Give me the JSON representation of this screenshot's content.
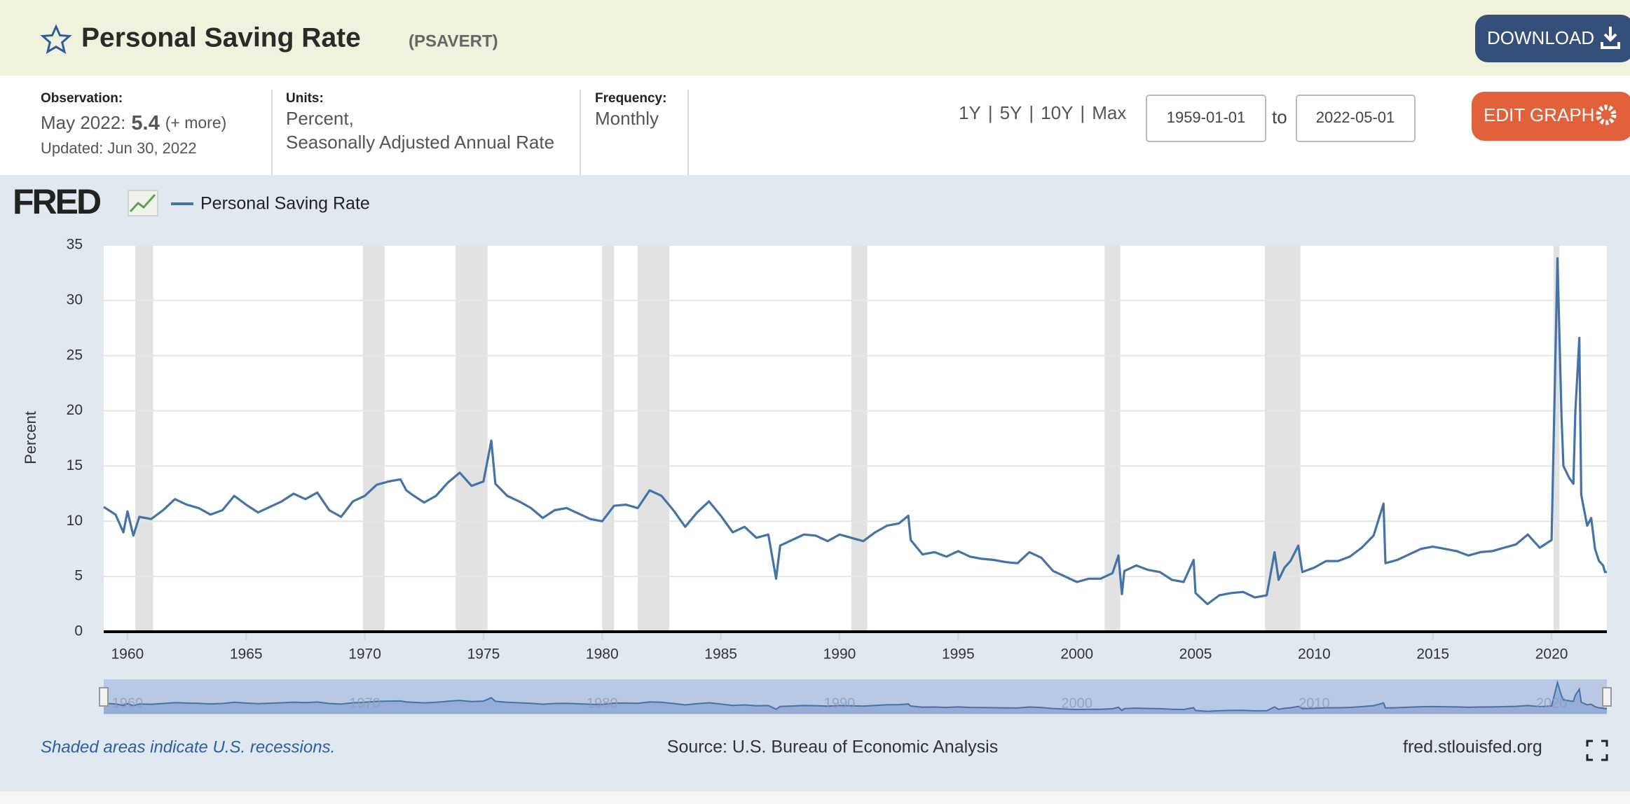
{
  "header": {
    "title": "Personal Saving Rate",
    "series_id": "(PSAVERT)",
    "download": "DOWNLOAD"
  },
  "info": {
    "observation_label": "Observation:",
    "observation_date": "May 2022:",
    "observation_value": "5.4",
    "more": "(+ more)",
    "updated": "Updated: Jun 30, 2022",
    "units_label": "Units:",
    "units_line1": "Percent,",
    "units_line2": "Seasonally Adjusted Annual Rate",
    "frequency_label": "Frequency:",
    "frequency": "Monthly"
  },
  "controls": {
    "ranges": [
      "1Y",
      "5Y",
      "10Y",
      "Max"
    ],
    "separator": "|",
    "start_date": "1959-01-01",
    "to": "to",
    "end_date": "2022-05-01",
    "edit": "EDIT GRAPH"
  },
  "chart_data": {
    "type": "line",
    "logo": "FRED",
    "ylabel": "Percent",
    "x": [
      1959.0,
      1959.5,
      1959.83,
      1960.0,
      1960.25,
      1960.5,
      1961.0,
      1961.5,
      1962.0,
      1962.5,
      1963.0,
      1963.5,
      1964.0,
      1964.5,
      1965.0,
      1965.5,
      1966.0,
      1966.5,
      1967.0,
      1967.5,
      1968.0,
      1968.5,
      1969.0,
      1969.5,
      1970.0,
      1970.5,
      1971.0,
      1971.5,
      1971.75,
      1972.0,
      1972.5,
      1973.0,
      1973.5,
      1974.0,
      1974.5,
      1975.0,
      1975.33,
      1975.5,
      1976.0,
      1976.5,
      1977.0,
      1977.5,
      1978.0,
      1978.5,
      1979.0,
      1979.5,
      1980.0,
      1980.5,
      1981.0,
      1981.5,
      1982.0,
      1982.5,
      1983.0,
      1983.5,
      1984.0,
      1984.5,
      1985.0,
      1985.5,
      1986.0,
      1986.5,
      1987.0,
      1987.33,
      1987.5,
      1988.0,
      1988.5,
      1989.0,
      1989.5,
      1990.0,
      1990.5,
      1991.0,
      1991.5,
      1992.0,
      1992.5,
      1992.9,
      1993.0,
      1993.5,
      1994.0,
      1994.5,
      1995.0,
      1995.5,
      1996.0,
      1996.5,
      1997.0,
      1997.5,
      1998.0,
      1998.5,
      1999.0,
      1999.5,
      2000.0,
      2000.5,
      2001.0,
      2001.5,
      2001.75,
      2001.9,
      2002.0,
      2002.5,
      2003.0,
      2003.5,
      2004.0,
      2004.5,
      2004.92,
      2005.0,
      2005.5,
      2006.0,
      2006.5,
      2007.0,
      2007.5,
      2008.0,
      2008.33,
      2008.5,
      2008.75,
      2009.0,
      2009.33,
      2009.5,
      2010.0,
      2010.5,
      2011.0,
      2011.5,
      2012.0,
      2012.5,
      2012.92,
      2013.0,
      2013.5,
      2014.0,
      2014.5,
      2015.0,
      2015.5,
      2016.0,
      2016.5,
      2017.0,
      2017.5,
      2018.0,
      2018.5,
      2019.0,
      2019.5,
      2020.0,
      2020.25,
      2020.42,
      2020.5,
      2020.75,
      2020.92,
      2021.0,
      2021.17,
      2021.25,
      2021.5,
      2021.67,
      2021.83,
      2022.0,
      2022.17,
      2022.25,
      2022.33
    ],
    "series": [
      {
        "name": "Personal Saving Rate",
        "color": "#4572a7",
        "values": [
          11.3,
          10.6,
          9.0,
          10.9,
          8.7,
          10.4,
          10.2,
          11.0,
          12.0,
          11.5,
          11.2,
          10.6,
          11.0,
          12.3,
          11.5,
          10.8,
          11.3,
          11.8,
          12.5,
          12.0,
          12.6,
          11.0,
          10.4,
          11.8,
          12.3,
          13.3,
          13.6,
          13.8,
          12.8,
          12.4,
          11.7,
          12.3,
          13.5,
          14.4,
          13.2,
          13.6,
          17.3,
          13.4,
          12.3,
          11.8,
          11.2,
          10.3,
          11.0,
          11.2,
          10.7,
          10.2,
          10.0,
          11.4,
          11.5,
          11.2,
          12.8,
          12.3,
          11.0,
          9.5,
          10.8,
          11.8,
          10.5,
          9.0,
          9.5,
          8.5,
          8.8,
          4.8,
          7.8,
          8.3,
          8.8,
          8.7,
          8.2,
          8.8,
          8.5,
          8.2,
          9.0,
          9.6,
          9.8,
          10.5,
          8.3,
          7.0,
          7.2,
          6.8,
          7.3,
          6.8,
          6.6,
          6.5,
          6.3,
          6.2,
          7.2,
          6.7,
          5.5,
          5.0,
          4.5,
          4.8,
          4.8,
          5.3,
          6.9,
          3.4,
          5.5,
          6.0,
          5.6,
          5.4,
          4.7,
          4.5,
          6.5,
          3.5,
          2.5,
          3.3,
          3.5,
          3.6,
          3.1,
          3.3,
          7.2,
          4.7,
          5.8,
          6.4,
          7.8,
          5.4,
          5.8,
          6.4,
          6.4,
          6.8,
          7.6,
          8.7,
          11.6,
          6.2,
          6.5,
          7.0,
          7.5,
          7.7,
          7.5,
          7.3,
          6.9,
          7.2,
          7.3,
          7.6,
          7.9,
          8.8,
          7.6,
          8.3,
          33.8,
          19.4,
          15.0,
          13.9,
          13.4,
          19.9,
          26.6,
          12.4,
          9.6,
          10.3,
          7.5,
          6.4,
          6.0,
          5.4,
          5.4
        ]
      }
    ],
    "xlim": [
      1959.0,
      2022.33
    ],
    "xticks": [
      1960,
      1965,
      1970,
      1975,
      1980,
      1985,
      1990,
      1995,
      2000,
      2005,
      2010,
      2015,
      2020
    ],
    "ylim": [
      0,
      35
    ],
    "yticks": [
      0,
      5,
      10,
      15,
      20,
      25,
      30,
      35
    ],
    "grid": true,
    "recessions": [
      [
        1960.33,
        1961.08
      ],
      [
        1969.92,
        1970.83
      ],
      [
        1973.83,
        1975.17
      ],
      [
        1980.0,
        1980.5
      ],
      [
        1981.5,
        1982.83
      ],
      [
        1990.5,
        1991.17
      ],
      [
        2001.17,
        2001.83
      ],
      [
        2007.92,
        2009.42
      ],
      [
        2020.08,
        2020.33
      ]
    ],
    "recession_color": "#e2e2e2",
    "navigator_ticks": [
      1960,
      1970,
      1980,
      1990,
      2000,
      2010,
      2020
    ]
  },
  "footer": {
    "note": "Shaded areas indicate U.S. recessions.",
    "source": "Source: U.S. Bureau of Economic Analysis",
    "link": "fred.stlouisfed.org"
  }
}
